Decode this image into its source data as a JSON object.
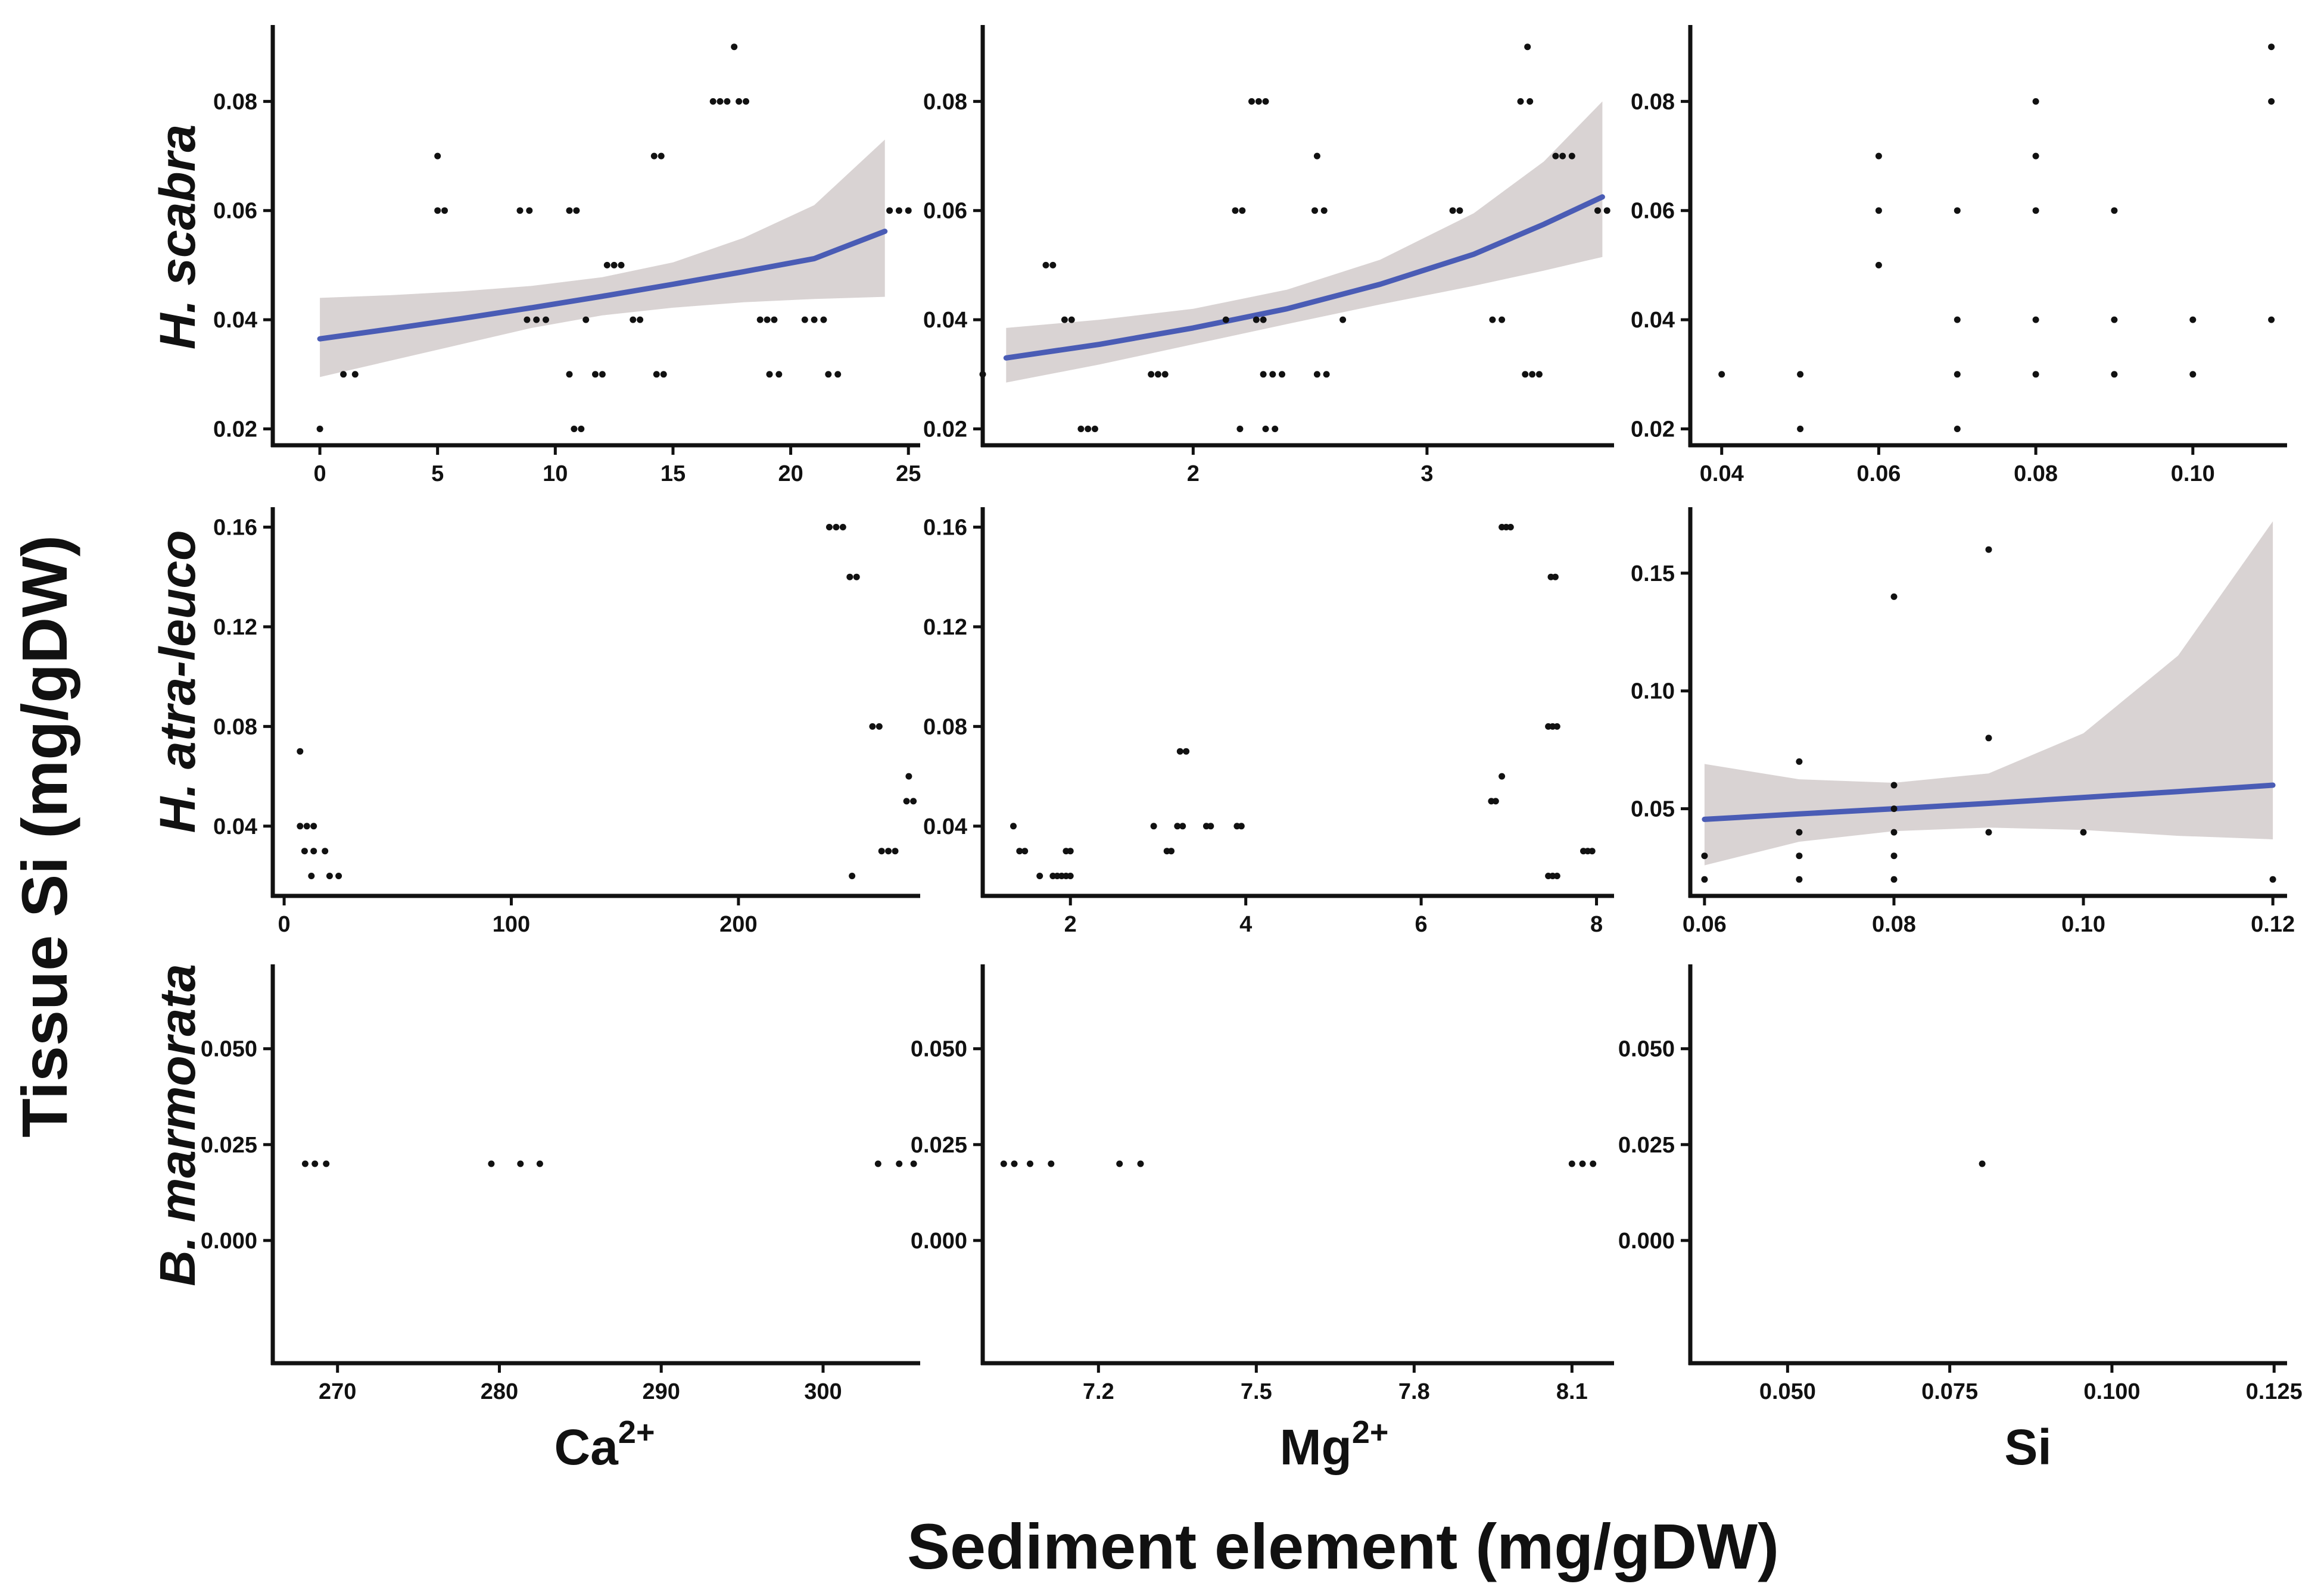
{
  "figure": {
    "y_title": "Tissue Si (mg/gDW)",
    "x_title": "Sediment element (mg/gDW)",
    "rows": [
      "H. scabra",
      "H. atra-leuco",
      "B. marmorata"
    ],
    "columns": [
      {
        "base": "Ca",
        "sup": "2+"
      },
      {
        "base": "Mg",
        "sup": "2+"
      },
      {
        "base": "Si",
        "sup": ""
      }
    ],
    "colors": {
      "fit_line": "#4a5cb5",
      "ci_band": "#d9d3d3",
      "points": "#111111",
      "axis": "#111111"
    }
  },
  "chart_data": [
    {
      "type": "scatter",
      "row": "H. scabra",
      "column": "Ca2+",
      "xlim": [
        -2,
        25.5
      ],
      "ylim": [
        0.017,
        0.094
      ],
      "xticks": [
        0,
        5,
        10,
        15,
        20,
        25
      ],
      "xticklabels": [
        "0",
        "5",
        "10",
        "15",
        "20",
        "25"
      ],
      "yticks": [
        0.02,
        0.04,
        0.06,
        0.08
      ],
      "yticklabels": [
        "0.02",
        "0.04",
        "0.06",
        "0.08"
      ],
      "points": [
        [
          0,
          0.02
        ],
        [
          1,
          0.03
        ],
        [
          1.5,
          0.03
        ],
        [
          5,
          0.07
        ],
        [
          5,
          0.06
        ],
        [
          5.3,
          0.06
        ],
        [
          8.5,
          0.06
        ],
        [
          8.9,
          0.06
        ],
        [
          8.8,
          0.04
        ],
        [
          9.2,
          0.04
        ],
        [
          9.6,
          0.04
        ],
        [
          10.6,
          0.03
        ],
        [
          10.6,
          0.06
        ],
        [
          10.9,
          0.06
        ],
        [
          10.8,
          0.02
        ],
        [
          11.1,
          0.02
        ],
        [
          11.3,
          0.04
        ],
        [
          11.7,
          0.03
        ],
        [
          12,
          0.03
        ],
        [
          12.2,
          0.05
        ],
        [
          12.5,
          0.05
        ],
        [
          12.8,
          0.05
        ],
        [
          13.3,
          0.04
        ],
        [
          13.6,
          0.04
        ],
        [
          14.2,
          0.07
        ],
        [
          14.5,
          0.07
        ],
        [
          14.3,
          0.03
        ],
        [
          14.6,
          0.03
        ],
        [
          16.7,
          0.08
        ],
        [
          17,
          0.08
        ],
        [
          17.3,
          0.08
        ],
        [
          17.6,
          0.09
        ],
        [
          17.8,
          0.08
        ],
        [
          18.1,
          0.08
        ],
        [
          18.7,
          0.04
        ],
        [
          19,
          0.04
        ],
        [
          19.3,
          0.04
        ],
        [
          19.1,
          0.03
        ],
        [
          19.5,
          0.03
        ],
        [
          20.6,
          0.04
        ],
        [
          21,
          0.04
        ],
        [
          21.4,
          0.04
        ],
        [
          21.6,
          0.03
        ],
        [
          22,
          0.03
        ],
        [
          24.2,
          0.06
        ],
        [
          24.6,
          0.06
        ],
        [
          25,
          0.06
        ]
      ],
      "fit": {
        "x": [
          0,
          3,
          6,
          9,
          12,
          15,
          18,
          21,
          24
        ],
        "y": [
          0.0365,
          0.0383,
          0.0402,
          0.0422,
          0.0443,
          0.0465,
          0.0488,
          0.0512,
          0.0562
        ],
        "lower": [
          0.0295,
          0.0325,
          0.0355,
          0.0385,
          0.0408,
          0.0422,
          0.0432,
          0.0438,
          0.0442
        ],
        "upper": [
          0.044,
          0.0445,
          0.0452,
          0.0462,
          0.0478,
          0.0505,
          0.055,
          0.061,
          0.073
        ]
      }
    },
    {
      "type": "scatter",
      "row": "H. scabra",
      "column": "Mg2+",
      "xlim": [
        1.1,
        3.8
      ],
      "ylim": [
        0.017,
        0.094
      ],
      "xticks": [
        2,
        3
      ],
      "xticklabels": [
        "2",
        "3"
      ],
      "yticks": [
        0.02,
        0.04,
        0.06,
        0.08
      ],
      "yticklabels": [
        "0.02",
        "0.04",
        "0.06",
        "0.08"
      ],
      "points": [
        [
          1.1,
          0.03
        ],
        [
          1.37,
          0.05
        ],
        [
          1.4,
          0.05
        ],
        [
          1.45,
          0.04
        ],
        [
          1.48,
          0.04
        ],
        [
          1.52,
          0.02
        ],
        [
          1.55,
          0.02
        ],
        [
          1.58,
          0.02
        ],
        [
          1.82,
          0.03
        ],
        [
          1.85,
          0.03
        ],
        [
          1.88,
          0.03
        ],
        [
          2.14,
          0.04
        ],
        [
          2.18,
          0.06
        ],
        [
          2.21,
          0.06
        ],
        [
          2.2,
          0.02
        ],
        [
          2.27,
          0.04
        ],
        [
          2.3,
          0.04
        ],
        [
          2.25,
          0.08
        ],
        [
          2.28,
          0.08
        ],
        [
          2.31,
          0.08
        ],
        [
          2.3,
          0.03
        ],
        [
          2.34,
          0.03
        ],
        [
          2.38,
          0.03
        ],
        [
          2.31,
          0.02
        ],
        [
          2.35,
          0.02
        ],
        [
          2.53,
          0.07
        ],
        [
          2.52,
          0.06
        ],
        [
          2.56,
          0.06
        ],
        [
          2.53,
          0.03
        ],
        [
          2.57,
          0.03
        ],
        [
          2.64,
          0.04
        ],
        [
          3.11,
          0.06
        ],
        [
          3.14,
          0.06
        ],
        [
          3.28,
          0.04
        ],
        [
          3.32,
          0.04
        ],
        [
          3.4,
          0.08
        ],
        [
          3.44,
          0.08
        ],
        [
          3.43,
          0.09
        ],
        [
          3.42,
          0.03
        ],
        [
          3.45,
          0.03
        ],
        [
          3.48,
          0.03
        ],
        [
          3.55,
          0.07
        ],
        [
          3.58,
          0.07
        ],
        [
          3.62,
          0.07
        ],
        [
          3.73,
          0.06
        ],
        [
          3.77,
          0.06
        ]
      ],
      "fit": {
        "x": [
          1.2,
          1.6,
          2.0,
          2.4,
          2.8,
          3.2,
          3.5,
          3.75
        ],
        "y": [
          0.033,
          0.0355,
          0.0385,
          0.042,
          0.0465,
          0.052,
          0.0575,
          0.0625
        ],
        "lower": [
          0.0285,
          0.0318,
          0.0355,
          0.0392,
          0.0428,
          0.0462,
          0.049,
          0.0515
        ],
        "upper": [
          0.0385,
          0.04,
          0.042,
          0.0455,
          0.051,
          0.0595,
          0.069,
          0.08
        ]
      }
    },
    {
      "type": "scatter",
      "row": "H. scabra",
      "column": "Si",
      "xlim": [
        0.036,
        0.112
      ],
      "ylim": [
        0.017,
        0.094
      ],
      "xticks": [
        0.04,
        0.06,
        0.08,
        0.1
      ],
      "xticklabels": [
        "0.04",
        "0.06",
        "0.08",
        "0.10"
      ],
      "yticks": [
        0.02,
        0.04,
        0.06,
        0.08
      ],
      "yticklabels": [
        "0.02",
        "0.04",
        "0.06",
        "0.08"
      ],
      "points": [
        [
          0.04,
          0.03
        ],
        [
          0.05,
          0.03
        ],
        [
          0.05,
          0.02
        ],
        [
          0.06,
          0.07
        ],
        [
          0.06,
          0.06
        ],
        [
          0.06,
          0.05
        ],
        [
          0.07,
          0.06
        ],
        [
          0.07,
          0.04
        ],
        [
          0.07,
          0.03
        ],
        [
          0.07,
          0.02
        ],
        [
          0.08,
          0.08
        ],
        [
          0.08,
          0.07
        ],
        [
          0.08,
          0.06
        ],
        [
          0.08,
          0.04
        ],
        [
          0.08,
          0.03
        ],
        [
          0.09,
          0.06
        ],
        [
          0.09,
          0.04
        ],
        [
          0.09,
          0.03
        ],
        [
          0.1,
          0.04
        ],
        [
          0.1,
          0.03
        ],
        [
          0.11,
          0.09
        ],
        [
          0.11,
          0.08
        ],
        [
          0.11,
          0.04
        ]
      ]
    },
    {
      "type": "scatter",
      "row": "H. atra-leuco",
      "column": "Ca2+",
      "xlim": [
        -5,
        280
      ],
      "ylim": [
        0.012,
        0.168
      ],
      "xticks": [
        0,
        100,
        200
      ],
      "xticklabels": [
        "0",
        "100",
        "200"
      ],
      "yticks": [
        0.04,
        0.08,
        0.12,
        0.16
      ],
      "yticklabels": [
        "0.04",
        "0.08",
        "0.12",
        "0.16"
      ],
      "points": [
        [
          7,
          0.07
        ],
        [
          7,
          0.04
        ],
        [
          10,
          0.04
        ],
        [
          13,
          0.04
        ],
        [
          9,
          0.03
        ],
        [
          13,
          0.03
        ],
        [
          18,
          0.03
        ],
        [
          12,
          0.02
        ],
        [
          20,
          0.02
        ],
        [
          24,
          0.02
        ],
        [
          240,
          0.16
        ],
        [
          243,
          0.16
        ],
        [
          246,
          0.16
        ],
        [
          249,
          0.14
        ],
        [
          252,
          0.14
        ],
        [
          250,
          0.02
        ],
        [
          259,
          0.08
        ],
        [
          262,
          0.08
        ],
        [
          263,
          0.03
        ],
        [
          266,
          0.03
        ],
        [
          269,
          0.03
        ],
        [
          275,
          0.06
        ],
        [
          274,
          0.05
        ],
        [
          277,
          0.05
        ]
      ]
    },
    {
      "type": "scatter",
      "row": "H. atra-leuco",
      "column": "Mg2+",
      "xlim": [
        1.0,
        8.2
      ],
      "ylim": [
        0.012,
        0.168
      ],
      "xticks": [
        2,
        4,
        6,
        8
      ],
      "xticklabels": [
        "2",
        "4",
        "6",
        "8"
      ],
      "yticks": [
        0.04,
        0.08,
        0.12,
        0.16
      ],
      "yticklabels": [
        "0.04",
        "0.08",
        "0.12",
        "0.16"
      ],
      "points": [
        [
          1.35,
          0.04
        ],
        [
          1.42,
          0.03
        ],
        [
          1.48,
          0.03
        ],
        [
          1.65,
          0.02
        ],
        [
          1.8,
          0.02
        ],
        [
          1.85,
          0.02
        ],
        [
          1.9,
          0.02
        ],
        [
          1.95,
          0.02
        ],
        [
          2.0,
          0.02
        ],
        [
          1.95,
          0.03
        ],
        [
          2.0,
          0.03
        ],
        [
          2.95,
          0.04
        ],
        [
          3.1,
          0.03
        ],
        [
          3.15,
          0.03
        ],
        [
          3.22,
          0.04
        ],
        [
          3.28,
          0.04
        ],
        [
          3.25,
          0.07
        ],
        [
          3.32,
          0.07
        ],
        [
          3.55,
          0.04
        ],
        [
          3.6,
          0.04
        ],
        [
          3.9,
          0.04
        ],
        [
          3.95,
          0.04
        ],
        [
          6.8,
          0.05
        ],
        [
          6.85,
          0.05
        ],
        [
          6.92,
          0.06
        ],
        [
          6.92,
          0.16
        ],
        [
          6.97,
          0.16
        ],
        [
          7.02,
          0.16
        ],
        [
          7.48,
          0.14
        ],
        [
          7.53,
          0.14
        ],
        [
          7.45,
          0.08
        ],
        [
          7.5,
          0.08
        ],
        [
          7.55,
          0.08
        ],
        [
          7.45,
          0.02
        ],
        [
          7.5,
          0.02
        ],
        [
          7.55,
          0.02
        ],
        [
          7.85,
          0.03
        ],
        [
          7.9,
          0.03
        ],
        [
          7.95,
          0.03
        ]
      ]
    },
    {
      "type": "scatter",
      "row": "H. atra-leuco",
      "column": "Si",
      "xlim": [
        0.0585,
        0.1215
      ],
      "ylim": [
        0.013,
        0.178
      ],
      "xticks": [
        0.06,
        0.08,
        0.1,
        0.12
      ],
      "xticklabels": [
        "0.06",
        "0.08",
        "0.10",
        "0.12"
      ],
      "yticks": [
        0.05,
        0.1,
        0.15
      ],
      "yticklabels": [
        "0.05",
        "0.10",
        "0.15"
      ],
      "points": [
        [
          0.06,
          0.03
        ],
        [
          0.06,
          0.02
        ],
        [
          0.07,
          0.07
        ],
        [
          0.07,
          0.04
        ],
        [
          0.07,
          0.03
        ],
        [
          0.07,
          0.02
        ],
        [
          0.08,
          0.14
        ],
        [
          0.08,
          0.06
        ],
        [
          0.08,
          0.05
        ],
        [
          0.08,
          0.04
        ],
        [
          0.08,
          0.03
        ],
        [
          0.08,
          0.02
        ],
        [
          0.09,
          0.16
        ],
        [
          0.09,
          0.08
        ],
        [
          0.09,
          0.04
        ],
        [
          0.1,
          0.04
        ],
        [
          0.12,
          0.02
        ]
      ],
      "fit": {
        "x": [
          0.06,
          0.07,
          0.08,
          0.09,
          0.1,
          0.11,
          0.12
        ],
        "y": [
          0.0455,
          0.0478,
          0.05,
          0.0523,
          0.0548,
          0.0573,
          0.06
        ],
        "lower": [
          0.026,
          0.036,
          0.0405,
          0.042,
          0.041,
          0.0385,
          0.037
        ],
        "upper": [
          0.069,
          0.0625,
          0.061,
          0.065,
          0.082,
          0.115,
          0.172
        ]
      }
    },
    {
      "type": "scatter",
      "row": "B. marmorata",
      "column": "Ca2+",
      "xlim": [
        266,
        306
      ],
      "ylim": [
        -0.032,
        0.072
      ],
      "xticks": [
        270,
        280,
        290,
        300
      ],
      "xticklabels": [
        "270",
        "280",
        "290",
        "300"
      ],
      "yticks": [
        0.0,
        0.025,
        0.05
      ],
      "yticklabels": [
        "0.000",
        "0.025",
        "0.050"
      ],
      "points": [
        [
          268,
          0.02
        ],
        [
          268.6,
          0.02
        ],
        [
          269.3,
          0.02
        ],
        [
          279.5,
          0.02
        ],
        [
          281.3,
          0.02
        ],
        [
          282.5,
          0.02
        ],
        [
          303.4,
          0.02
        ],
        [
          304.7,
          0.02
        ],
        [
          305.6,
          0.02
        ]
      ]
    },
    {
      "type": "scatter",
      "row": "B. marmorata",
      "column": "Mg2+",
      "xlim": [
        6.98,
        8.18
      ],
      "ylim": [
        -0.032,
        0.072
      ],
      "xticks": [
        7.2,
        7.5,
        7.8,
        8.1
      ],
      "xticklabels": [
        "7.2",
        "7.5",
        "7.8",
        "8.1"
      ],
      "yticks": [
        0.0,
        0.025,
        0.05
      ],
      "yticklabels": [
        "0.000",
        "0.025",
        "0.050"
      ],
      "points": [
        [
          7.02,
          0.02
        ],
        [
          7.04,
          0.02
        ],
        [
          7.07,
          0.02
        ],
        [
          7.11,
          0.02
        ],
        [
          7.24,
          0.02
        ],
        [
          7.28,
          0.02
        ],
        [
          8.1,
          0.02
        ],
        [
          8.12,
          0.02
        ],
        [
          8.14,
          0.02
        ]
      ]
    },
    {
      "type": "scatter",
      "row": "B. marmorata",
      "column": "Si",
      "xlim": [
        0.035,
        0.127
      ],
      "ylim": [
        -0.032,
        0.072
      ],
      "xticks": [
        0.05,
        0.075,
        0.1,
        0.125
      ],
      "xticklabels": [
        "0.050",
        "0.075",
        "0.100",
        "0.125"
      ],
      "yticks": [
        0.0,
        0.025,
        0.05
      ],
      "yticklabels": [
        "0.000",
        "0.025",
        "0.050"
      ],
      "points": [
        [
          0.08,
          0.02
        ]
      ]
    }
  ]
}
